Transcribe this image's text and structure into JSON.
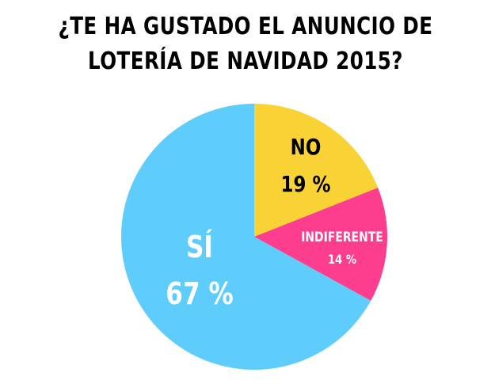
{
  "title": {
    "line1": "¿TE HA GUSTADO EL ANUNCIO DE",
    "line2": "LOTERÍA DE NAVIDAD 2015?"
  },
  "chart_data": {
    "type": "pie",
    "title": "¿TE HA GUSTADO EL ANUNCIO DE LOTERÍA DE NAVIDAD 2015?",
    "slices": [
      {
        "label": "NO",
        "value": 19,
        "display": "19 %",
        "color": "#f9d335",
        "label_color": "#000000"
      },
      {
        "label": "INDIFERENTE",
        "value": 14,
        "display": "14 %",
        "color": "#fd3e8f",
        "label_color": "#ffffff"
      },
      {
        "label": "SÍ",
        "value": 67,
        "display": "67 %",
        "color": "#5fcdfb",
        "label_color": "#ffffff"
      }
    ],
    "start_angle": "12 o'clock",
    "direction": "clockwise",
    "legend": "none"
  }
}
